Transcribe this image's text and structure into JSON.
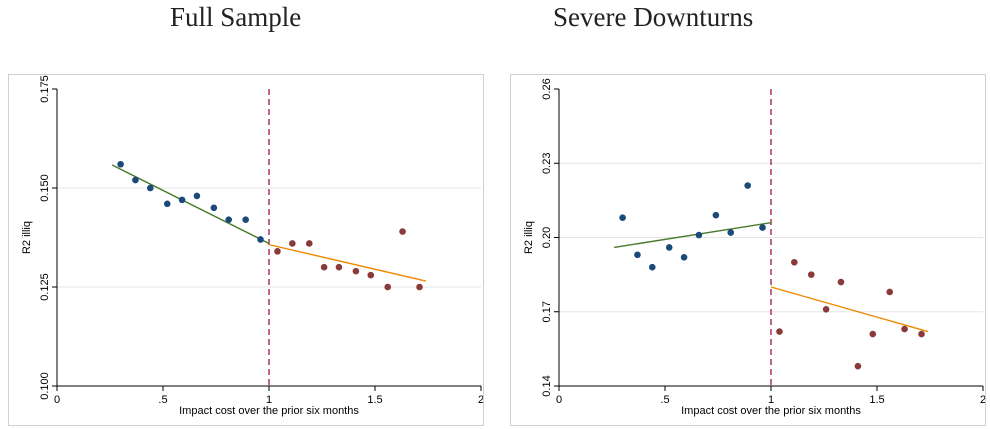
{
  "titles": {
    "left": "Full Sample",
    "right": "Severe Downturns"
  },
  "chart_data": [
    {
      "type": "scatter",
      "title": "Full Sample",
      "xlabel": "Impact cost over the prior six months",
      "ylabel": "R2 illiq",
      "xlim": [
        0,
        2
      ],
      "ylim": [
        0.1,
        0.175
      ],
      "xticks": [
        0,
        0.5,
        1,
        1.5,
        2
      ],
      "xtick_labels": [
        "0",
        ".5",
        "1",
        "1.5",
        "2"
      ],
      "yticks": [
        0.1,
        0.125,
        0.15,
        0.175
      ],
      "ytick_labels": [
        "0.100",
        "0.125",
        "0.150",
        "0.175"
      ],
      "grid": true,
      "cutoff_x": 1,
      "series": [
        {
          "color": "#1a4a7a",
          "x": [
            0.3,
            0.37,
            0.44,
            0.52,
            0.59,
            0.66,
            0.74,
            0.81,
            0.89,
            0.96
          ],
          "y": [
            0.156,
            0.152,
            0.15,
            0.146,
            0.147,
            0.148,
            0.145,
            0.142,
            0.142,
            0.137
          ]
        },
        {
          "color": "#8b3a3a",
          "x": [
            1.04,
            1.11,
            1.19,
            1.26,
            1.33,
            1.41,
            1.48,
            1.56,
            1.63,
            1.71
          ],
          "y": [
            0.134,
            0.136,
            0.136,
            0.13,
            0.13,
            0.129,
            0.128,
            0.125,
            0.139,
            0.125
          ]
        }
      ],
      "fit_lines": [
        {
          "color": "#4a7a2a",
          "x": [
            0.26,
            1.0
          ],
          "y": [
            0.1558,
            0.136
          ]
        },
        {
          "color": "#ee8800",
          "x": [
            1.0,
            1.74
          ],
          "y": [
            0.1357,
            0.1265
          ]
        }
      ]
    },
    {
      "type": "scatter",
      "title": "Severe Downturns",
      "xlabel": "Impact cost over the prior six months",
      "ylabel": "R2 illiq",
      "xlim": [
        0,
        2
      ],
      "ylim": [
        0.14,
        0.26
      ],
      "xticks": [
        0,
        0.5,
        1,
        1.5,
        2
      ],
      "xtick_labels": [
        "0",
        ".5",
        "1",
        "1.5",
        "2"
      ],
      "yticks": [
        0.14,
        0.17,
        0.2,
        0.23,
        0.26
      ],
      "ytick_labels": [
        "0.14",
        "0.17",
        "0.20",
        "0.23",
        "0.26"
      ],
      "grid": true,
      "cutoff_x": 1,
      "series": [
        {
          "color": "#1a4a7a",
          "x": [
            0.3,
            0.37,
            0.44,
            0.52,
            0.59,
            0.66,
            0.74,
            0.81,
            0.89,
            0.96
          ],
          "y": [
            0.208,
            0.193,
            0.188,
            0.196,
            0.192,
            0.201,
            0.209,
            0.202,
            0.221,
            0.204
          ]
        },
        {
          "color": "#8b3a3a",
          "x": [
            1.04,
            1.11,
            1.19,
            1.26,
            1.33,
            1.41,
            1.48,
            1.56,
            1.63,
            1.71
          ],
          "y": [
            0.162,
            0.19,
            0.185,
            0.171,
            0.182,
            0.148,
            0.161,
            0.178,
            0.163,
            0.161
          ]
        }
      ],
      "fit_lines": [
        {
          "color": "#4a7a2a",
          "x": [
            0.26,
            1.0
          ],
          "y": [
            0.196,
            0.206
          ]
        },
        {
          "color": "#ee8800",
          "x": [
            1.0,
            1.74
          ],
          "y": [
            0.18,
            0.162
          ]
        }
      ]
    }
  ]
}
